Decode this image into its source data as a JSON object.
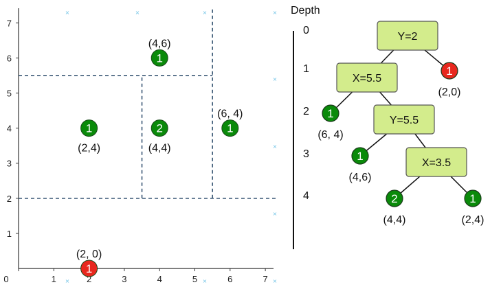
{
  "plot": {
    "x_ticks": [
      "0",
      "1",
      "2",
      "3",
      "4",
      "5",
      "6",
      "7"
    ],
    "y_ticks": [
      "1",
      "2",
      "3",
      "4",
      "5",
      "6",
      "7"
    ],
    "xlim": [
      0,
      7.3
    ],
    "ylim": [
      0,
      7.3
    ],
    "splits": [
      {
        "axis": "y",
        "value": 2,
        "from": 0,
        "to": 7.3
      },
      {
        "axis": "x",
        "value": 5.5,
        "from": 2,
        "to": 7.6
      },
      {
        "axis": "y",
        "value": 5.5,
        "from": 0,
        "to": 5.5
      },
      {
        "axis": "x",
        "value": 3.5,
        "from": 2,
        "to": 5.5
      }
    ],
    "points": [
      {
        "x": 2,
        "y": 0,
        "count": "1",
        "label": "(2, 0)",
        "color": "#e8281e",
        "label_pos": "above"
      },
      {
        "x": 2,
        "y": 4,
        "count": "1",
        "label": "(2,4)",
        "color": "#0a8a0a",
        "label_pos": "below"
      },
      {
        "x": 4,
        "y": 4,
        "count": "2",
        "label": "(4,4)",
        "color": "#0a8a0a",
        "label_pos": "below"
      },
      {
        "x": 4,
        "y": 6,
        "count": "1",
        "label": "(4,6)",
        "color": "#0a8a0a",
        "label_pos": "above"
      },
      {
        "x": 6,
        "y": 4,
        "count": "1",
        "label": "(6, 4)",
        "color": "#0a8a0a",
        "label_pos": "above"
      }
    ]
  },
  "tree": {
    "depth_title": "Depth",
    "depths": [
      "0",
      "1",
      "2",
      "3",
      "4"
    ],
    "nodes": [
      {
        "id": "n0",
        "type": "split",
        "label": "Y=2"
      },
      {
        "id": "n1",
        "type": "split",
        "label": "X=5.5",
        "parent": "n0"
      },
      {
        "id": "n2",
        "type": "leaf",
        "count": "1",
        "label": "(2,0)",
        "color": "#e8281e",
        "parent": "n0"
      },
      {
        "id": "n3",
        "type": "leaf",
        "count": "1",
        "label": "(6, 4)",
        "color": "#0a8a0a",
        "parent": "n1"
      },
      {
        "id": "n4",
        "type": "split",
        "label": "Y=5.5",
        "parent": "n1"
      },
      {
        "id": "n5",
        "type": "leaf",
        "count": "1",
        "label": "(4,6)",
        "color": "#0a8a0a",
        "parent": "n4"
      },
      {
        "id": "n6",
        "type": "split",
        "label": "X=3.5",
        "parent": "n4"
      },
      {
        "id": "n7",
        "type": "leaf",
        "count": "2",
        "label": "(4,4)",
        "color": "#0a8a0a",
        "parent": "n6"
      },
      {
        "id": "n8",
        "type": "leaf",
        "count": "1",
        "label": "(2,4)",
        "color": "#0a8a0a",
        "parent": "n6"
      }
    ]
  },
  "colors": {
    "split_fill": "#d3ec8c",
    "split_stroke": "#555555",
    "divider": "#2a4a6a",
    "axis": "#333333"
  }
}
